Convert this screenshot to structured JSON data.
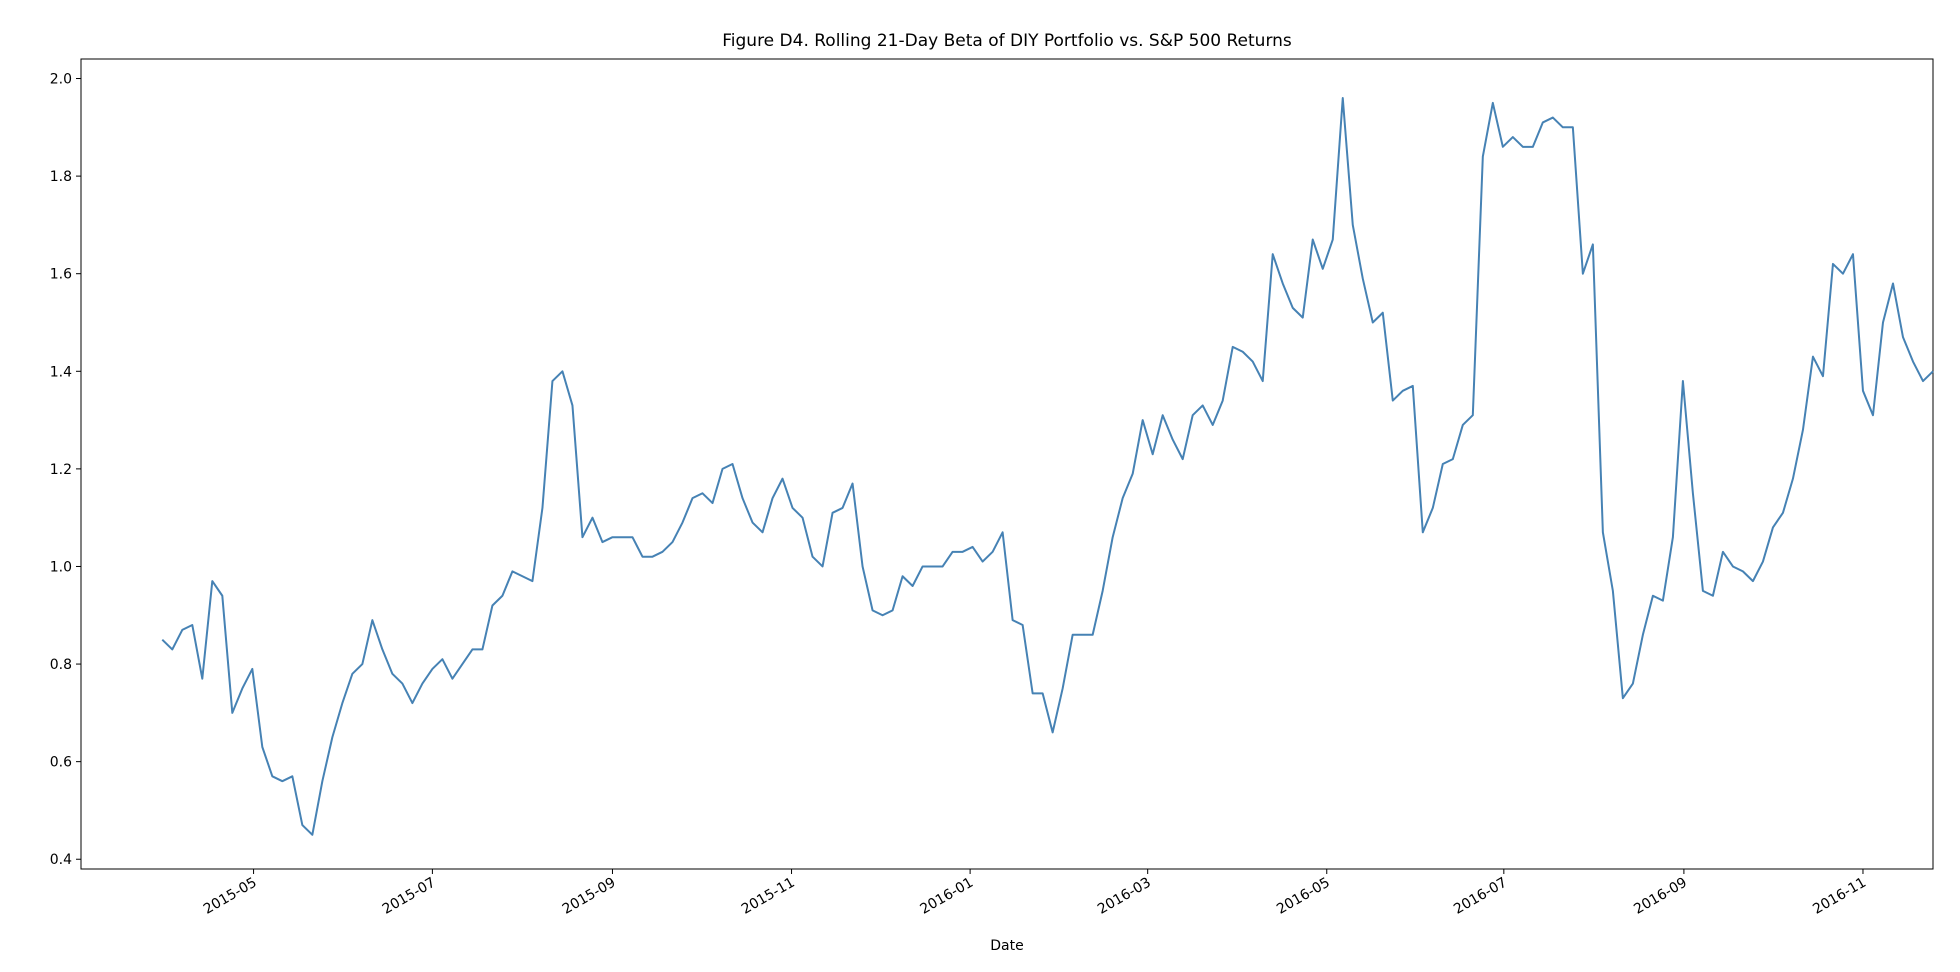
{
  "chart_data": {
    "type": "line",
    "title": "Figure D4. Rolling 21-Day Beta of DIY Portfolio vs. S&P 500 Returns",
    "x_label": "Date",
    "series": [
      {
        "color": "#4682b4",
        "values": [
          0.85,
          0.83,
          0.87,
          0.88,
          0.77,
          0.97,
          0.94,
          0.7,
          0.75,
          0.79,
          0.63,
          0.57,
          0.56,
          0.57,
          0.47,
          0.45,
          0.56,
          0.65,
          0.72,
          0.78,
          0.8,
          0.89,
          0.83,
          0.78,
          0.76,
          0.72,
          0.76,
          0.79,
          0.81,
          0.77,
          0.8,
          0.83,
          0.83,
          0.92,
          0.94,
          0.99,
          0.98,
          0.97,
          1.12,
          1.38,
          1.4,
          1.33,
          1.06,
          1.1,
          1.05,
          1.06,
          1.06,
          1.06,
          1.02,
          1.02,
          1.03,
          1.05,
          1.09,
          1.14,
          1.15,
          1.13,
          1.2,
          1.21,
          1.14,
          1.09,
          1.07,
          1.14,
          1.18,
          1.12,
          1.1,
          1.02,
          1.0,
          1.11,
          1.12,
          1.17,
          1.0,
          0.91,
          0.9,
          0.91,
          0.98,
          0.96,
          1.0,
          1.0,
          1.0,
          1.03,
          1.03,
          1.04,
          1.01,
          1.03,
          1.07,
          0.89,
          0.88,
          0.74,
          0.74,
          0.66,
          0.75,
          0.86,
          0.86,
          0.86,
          0.95,
          1.06,
          1.14,
          1.19,
          1.3,
          1.23,
          1.31,
          1.26,
          1.22,
          1.31,
          1.33,
          1.29,
          1.34,
          1.45,
          1.44,
          1.42,
          1.38,
          1.64,
          1.58,
          1.53,
          1.51,
          1.67,
          1.61,
          1.67,
          1.96,
          1.7,
          1.59,
          1.5,
          1.52,
          1.34,
          1.36,
          1.37,
          1.07,
          1.12,
          1.21,
          1.22,
          1.29,
          1.31,
          1.84,
          1.95,
          1.86,
          1.88,
          1.86,
          1.86,
          1.91,
          1.92,
          1.9,
          1.9,
          1.6,
          1.66,
          1.07,
          0.95,
          0.73,
          0.76,
          0.86,
          0.94,
          0.93,
          1.06,
          1.38,
          1.15,
          0.95,
          0.94,
          1.03,
          1.0,
          0.99,
          0.97,
          1.01,
          1.08,
          1.11,
          1.18,
          1.28,
          1.43,
          1.39,
          1.62,
          1.6,
          1.64,
          1.36,
          1.31,
          1.5,
          1.58,
          1.47,
          1.42,
          1.38,
          1.4
        ]
      }
    ],
    "xlim": [
      -8.125,
      177
    ],
    "xticks": [
      {
        "value": 9.125,
        "label": "2015-05"
      },
      {
        "value": 27,
        "label": "2015-07"
      },
      {
        "value": 45,
        "label": "2015-09"
      },
      {
        "value": 62.9,
        "label": "2015-11"
      },
      {
        "value": 80.75,
        "label": "2016-01"
      },
      {
        "value": 98.5,
        "label": "2016-03"
      },
      {
        "value": 116.4,
        "label": "2016-05"
      },
      {
        "value": 134.1,
        "label": "2016-07"
      },
      {
        "value": 152.1,
        "label": "2016-09"
      },
      {
        "value": 170,
        "label": "2016-11"
      }
    ],
    "ylim": [
      0.38,
      2.04
    ],
    "yticks": [
      0.4,
      0.6,
      0.8,
      {
        "value": 1,
        "label": "1.0"
      },
      1.2,
      1.4,
      1.6,
      1.8,
      {
        "value": 2,
        "label": "2.0"
      }
    ],
    "grid": false
  }
}
